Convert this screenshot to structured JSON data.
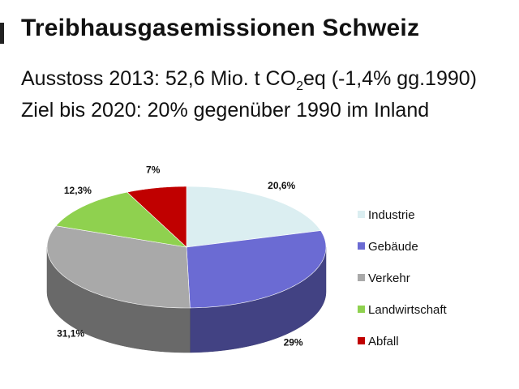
{
  "title": "Treibhausgasemissionen Schweiz",
  "subtitle": {
    "prefix": "Ausstoss 2013: 52,6 Mio. t CO",
    "sub": "2",
    "suffix": "eq (-1,4% gg.1990)"
  },
  "goal": "Ziel bis 2020: 20% gegenüber 1990 im Inland",
  "chart_data": {
    "type": "pie",
    "title": "",
    "categories": [
      "Industrie",
      "Gebäude",
      "Verkehr",
      "Landwirtschaft",
      "Abfall"
    ],
    "values": [
      20.6,
      29,
      31.1,
      12.3,
      7
    ],
    "labels": [
      "20,6%",
      "29%",
      "31,1%",
      "12,3%",
      "7%"
    ],
    "colors": [
      "#dbeef1",
      "#6b6bd3",
      "#a9a9a9",
      "#8fd14f",
      "#c00000"
    ],
    "legend_position": "right",
    "style": "3d"
  }
}
